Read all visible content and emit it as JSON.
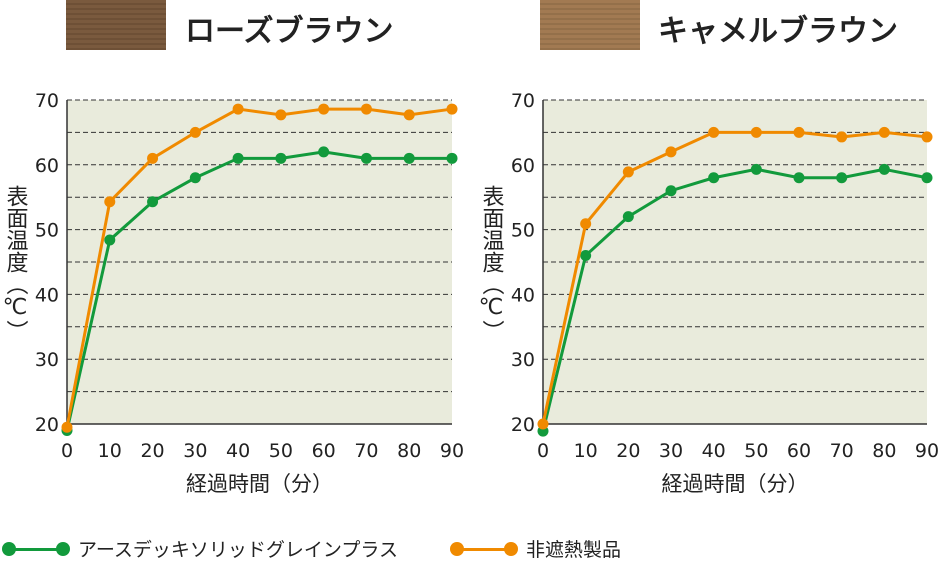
{
  "colors": {
    "green": "#129a3c",
    "orange": "#f08a00",
    "plot_bg": "#e9ebdc"
  },
  "legend": [
    {
      "label": "アースデッキソリッドグレインプラス",
      "color": "#129a3c"
    },
    {
      "label": "非遮熱製品",
      "color": "#f08a00"
    }
  ],
  "chart_data": [
    {
      "type": "line",
      "title": "ローズブラウン",
      "swatch_color": "#7a5a3e",
      "xlabel": "経過時間（分）",
      "ylabel": "表面温度（℃）",
      "x": [
        0,
        10,
        20,
        30,
        40,
        50,
        60,
        70,
        80,
        90
      ],
      "xlim": [
        0,
        90
      ],
      "ylim": [
        20,
        70
      ],
      "yticks": [
        20,
        30,
        40,
        50,
        60,
        70
      ],
      "series": [
        {
          "name": "アースデッキソリッドグレインプラス",
          "values": [
            19,
            48.4,
            54.3,
            58,
            61,
            61,
            62,
            61,
            61,
            61
          ]
        },
        {
          "name": "非遮熱製品",
          "values": [
            19.5,
            54.3,
            61,
            65,
            68.6,
            67.7,
            68.6,
            68.6,
            67.7,
            68.6
          ]
        }
      ]
    },
    {
      "type": "line",
      "title": "キャメルブラウン",
      "swatch_color": "#a27a52",
      "xlabel": "経過時間（分）",
      "ylabel": "表面温度（℃）",
      "x": [
        0,
        10,
        20,
        30,
        40,
        50,
        60,
        70,
        80,
        90
      ],
      "xlim": [
        0,
        90
      ],
      "ylim": [
        20,
        70
      ],
      "yticks": [
        20,
        30,
        40,
        50,
        60,
        70
      ],
      "series": [
        {
          "name": "アースデッキソリッドグレインプラス",
          "values": [
            18.9,
            46,
            52,
            56,
            58,
            59.3,
            58,
            58,
            59.3,
            58
          ]
        },
        {
          "name": "非遮熱製品",
          "values": [
            20,
            50.9,
            58.9,
            62,
            65,
            65,
            65,
            64.3,
            65,
            64.3
          ]
        }
      ]
    }
  ]
}
